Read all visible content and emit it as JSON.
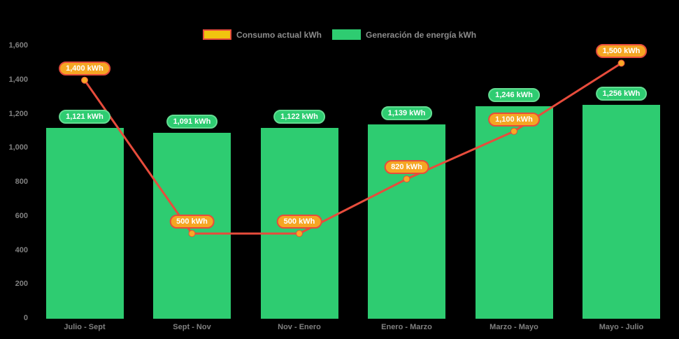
{
  "chart_data": {
    "type": "bar",
    "subtype": "bar-line-combo",
    "title": "",
    "xlabel": "",
    "ylabel": "",
    "background": "#000000",
    "text_color": "#808080",
    "grid": false,
    "legend_position": "top",
    "categories": [
      "Julio - Sept",
      "Sept - Nov",
      "Nov - Enero",
      "Enero - Marzo",
      "Marzo - Mayo",
      "Mayo - Julio"
    ],
    "series": [
      {
        "name": "Consumo actual kWh",
        "type": "line",
        "values": [
          1400,
          500,
          500,
          820,
          1100,
          1500
        ],
        "point_labels": [
          "1,400 kWh",
          "500 kWh",
          "500 kWh",
          "820 kWh",
          "1,100 kWh",
          "1,500 kWh"
        ],
        "line_color": "#E74C3C",
        "marker_color": "#F9A825",
        "label_bg": "#F5A623",
        "label_border": "#E74C3C"
      },
      {
        "name": "Generación de energía kWh",
        "type": "bar",
        "values": [
          1121,
          1091,
          1122,
          1139,
          1246,
          1256
        ],
        "point_labels": [
          "1,121 kWh",
          "1,091 kWh",
          "1,122 kWh",
          "1,139 kWh",
          "1,246 kWh",
          "1,256 kWh"
        ],
        "bar_color": "#2ECC71",
        "label_bg": "#2ECC71",
        "label_border": "#63DD92"
      }
    ],
    "y_axis": {
      "min": 0,
      "max": 1600,
      "step": 200,
      "tick_labels": [
        "0",
        "200",
        "400",
        "600",
        "800",
        "1,000",
        "1,200",
        "1,400",
        "1,600"
      ]
    },
    "legend": [
      {
        "label": "Consumo actual kWh",
        "swatch_fill": "#F1C40F",
        "swatch_border": "#E74C3C"
      },
      {
        "label": "Generación de energía kWh",
        "swatch_fill": "#2ECC71",
        "swatch_border": "#2ECC71"
      }
    ]
  }
}
